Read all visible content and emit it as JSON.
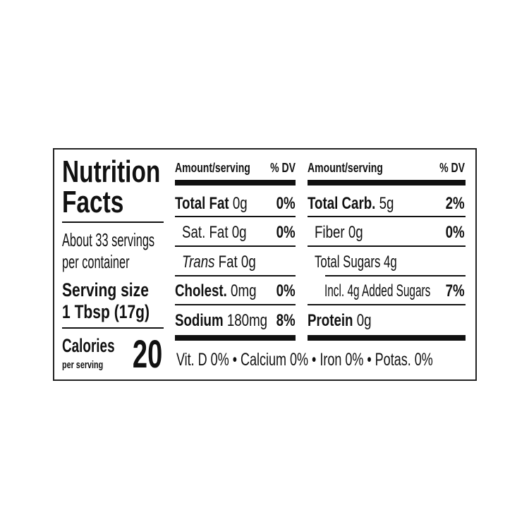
{
  "title_line1": "Nutrition",
  "title_line2": "Facts",
  "servings_line1": "About 33 servings",
  "servings_line2": "per container",
  "serving_size_label": "Serving size",
  "serving_size_value": "1 Tbsp (17g)",
  "calories_label": "Calories",
  "calories_sub": "per serving",
  "calories_value": "20",
  "header": {
    "amount": "Amount/serving",
    "dv": "% DV"
  },
  "left_rows": [
    {
      "label": "Total Fat",
      "value": "0g",
      "dv": "0%"
    },
    {
      "label": "Sat. Fat 0g",
      "value": "",
      "dv": "0%"
    },
    {
      "label": "Trans",
      "value": "Fat 0g",
      "dv": ""
    },
    {
      "label": "Cholest.",
      "value": "0mg",
      "dv": "0%"
    },
    {
      "label": "Sodium",
      "value": "180mg",
      "dv": "8%"
    }
  ],
  "right_rows": [
    {
      "label": "Total Carb.",
      "value": "5g",
      "dv": "2%"
    },
    {
      "label": "Fiber 0g",
      "value": "",
      "dv": "0%"
    },
    {
      "label": "Total Sugars 4g",
      "value": "",
      "dv": ""
    },
    {
      "label": "Incl. 4g Added Sugars",
      "value": "",
      "dv": "7%"
    },
    {
      "label": "Protein",
      "value": "0g",
      "dv": ""
    }
  ],
  "micronutrients": "Vit. D 0% • Calcium 0% • Iron 0% • Potas. 0%"
}
